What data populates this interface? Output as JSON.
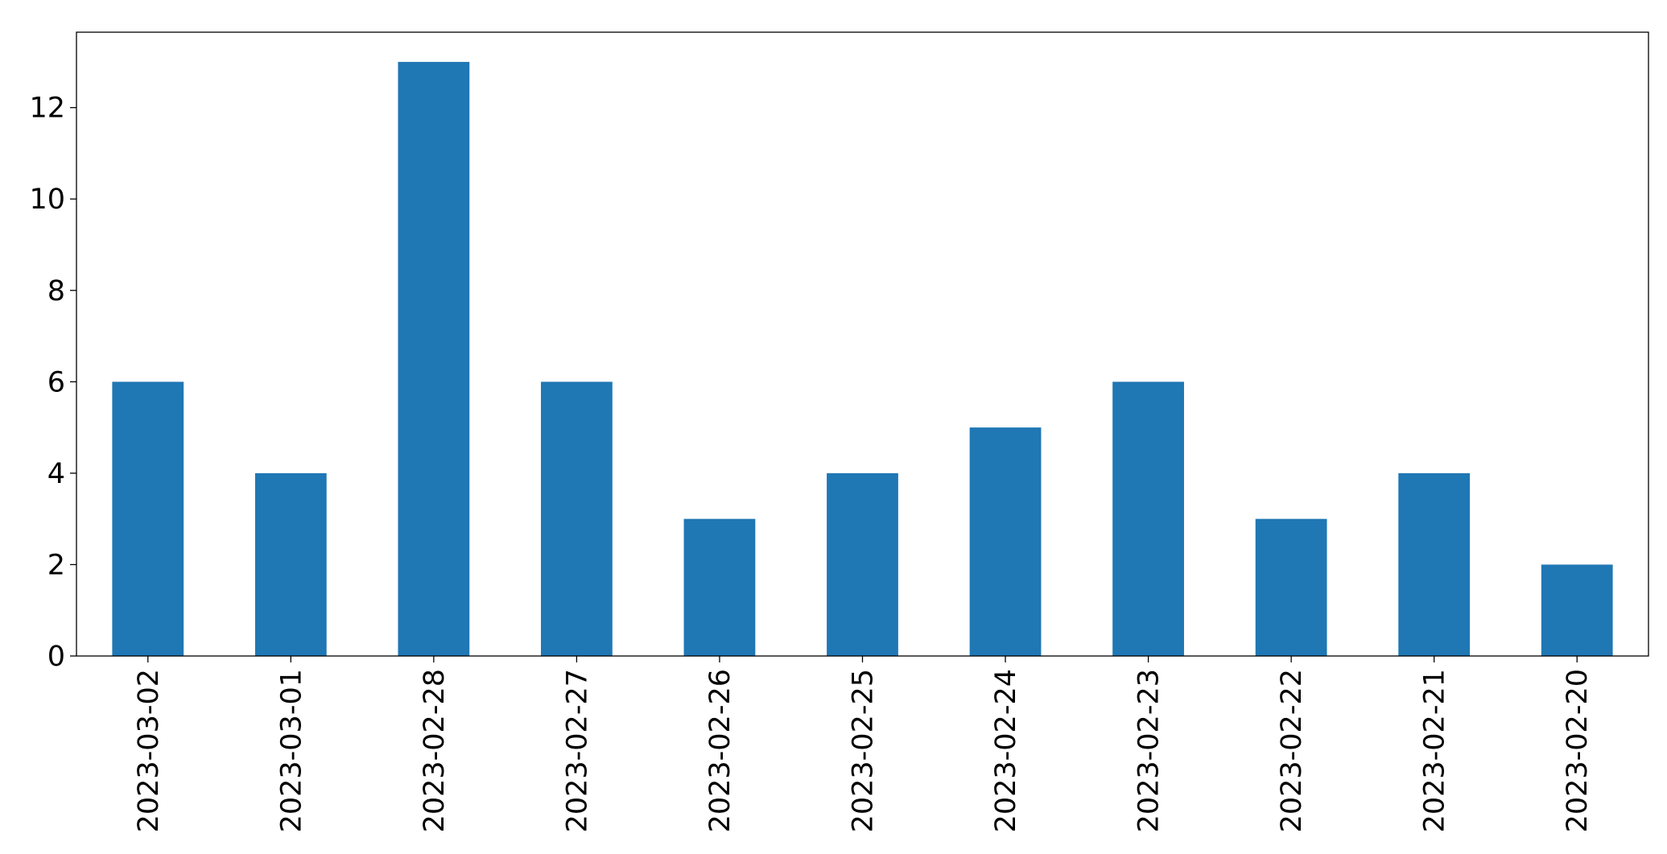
{
  "chart_data": {
    "type": "bar",
    "categories": [
      "2023-03-02",
      "2023-03-01",
      "2023-02-28",
      "2023-02-27",
      "2023-02-26",
      "2023-02-25",
      "2023-02-24",
      "2023-02-23",
      "2023-02-22",
      "2023-02-21",
      "2023-02-20"
    ],
    "values": [
      6,
      4,
      13,
      6,
      3,
      4,
      5,
      6,
      3,
      4,
      2
    ],
    "title": "",
    "xlabel": "",
    "ylabel": "",
    "ylim": [
      0,
      13.65
    ],
    "yticks": [
      0,
      2,
      4,
      6,
      8,
      10,
      12
    ],
    "grid": false,
    "legend": "none",
    "bar_color": "#1f77b4",
    "x_tick_rotation": "vertical"
  }
}
